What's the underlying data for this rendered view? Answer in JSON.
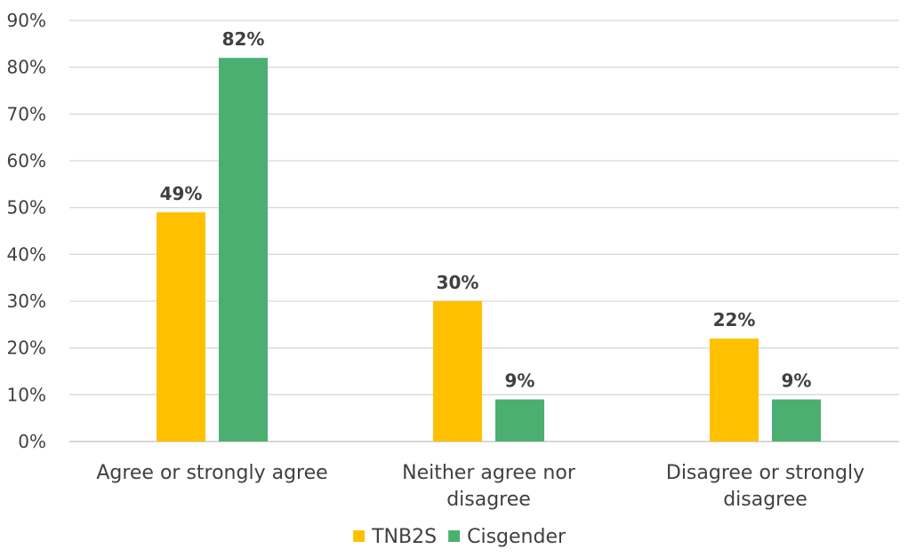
{
  "chart_data": {
    "type": "bar",
    "categories": [
      [
        "Agree or strongly agree"
      ],
      [
        "Neither agree nor",
        "disagree"
      ],
      [
        "Disagree or strongly",
        "disagree"
      ]
    ],
    "series": [
      {
        "name": "TNB2S",
        "color": "#FFC000",
        "values": [
          49,
          30,
          22
        ],
        "labels": [
          "49%",
          "30%",
          "22%"
        ]
      },
      {
        "name": "Cisgender",
        "color": "#4CAF72",
        "values": [
          82,
          9,
          9
        ],
        "labels": [
          "82%",
          "9%",
          "9%"
        ]
      }
    ],
    "ylim": [
      0,
      90
    ],
    "yticks": [
      "0%",
      "10%",
      "20%",
      "30%",
      "40%",
      "50%",
      "60%",
      "70%",
      "80%",
      "90%"
    ],
    "grid": true,
    "legend": "bottom"
  }
}
